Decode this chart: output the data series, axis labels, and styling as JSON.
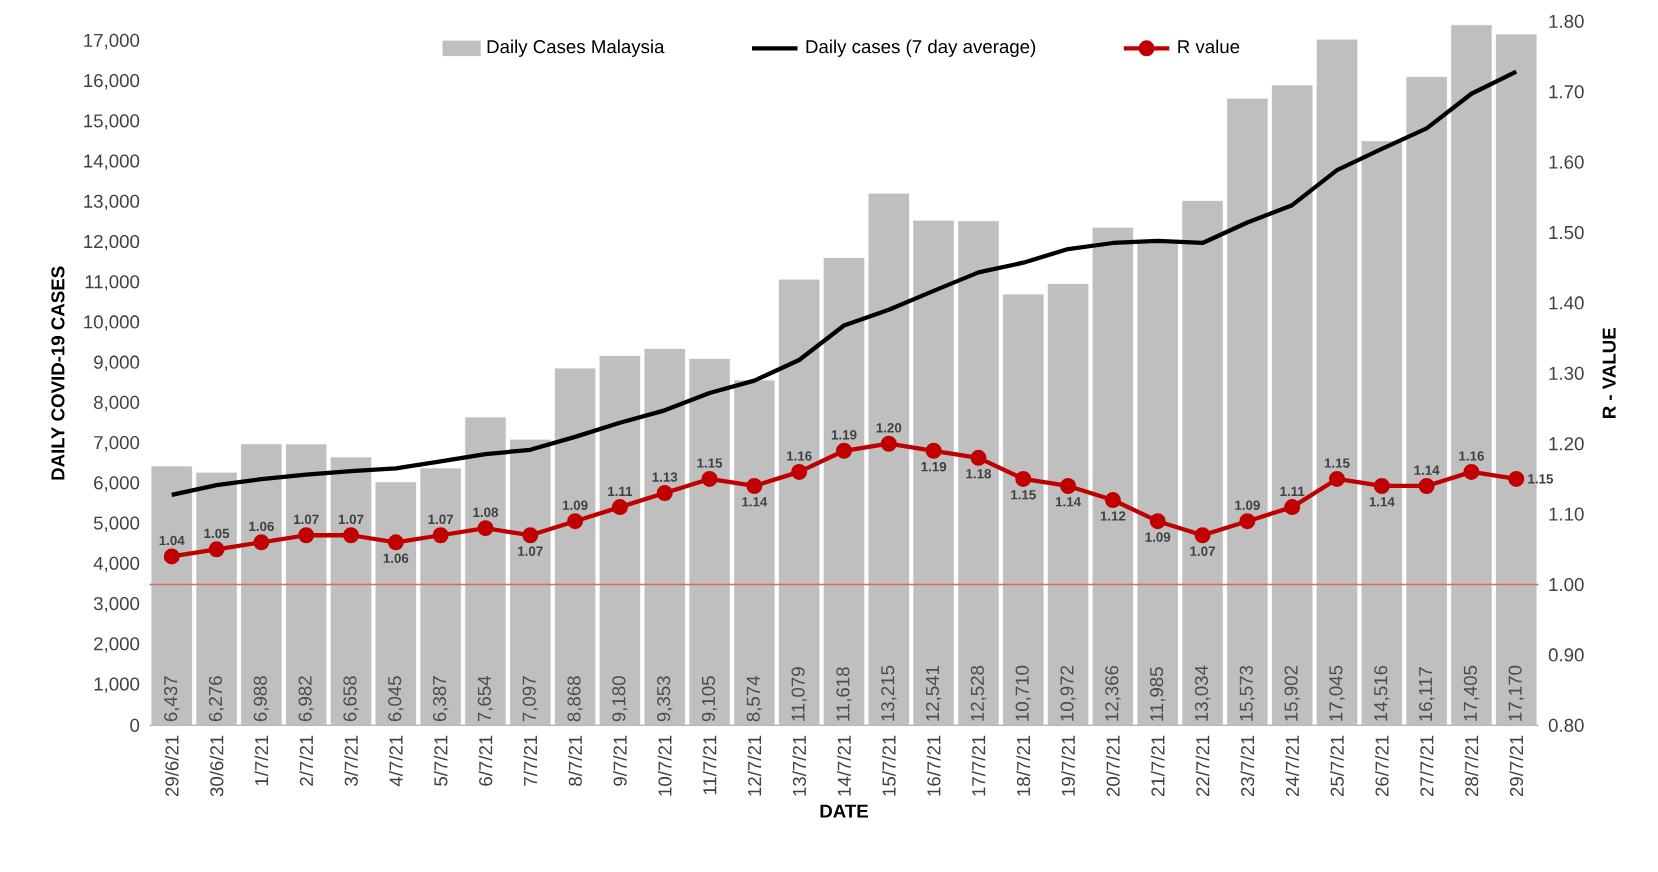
{
  "chart_data": {
    "type": "bar",
    "xlabel": "DATE",
    "ylabel": "DAILY COVID-19 CASES",
    "y2label": "R - VALUE",
    "categories": [
      "29/6/21",
      "30/6/21",
      "1/7/21",
      "2/7/21",
      "3/7/21",
      "4/7/21",
      "5/7/21",
      "6/7/21",
      "7/7/21",
      "8/7/21",
      "9/7/21",
      "10/7/21",
      "11/7/21",
      "12/7/21",
      "13/7/21",
      "14/7/21",
      "15/7/21",
      "16/7/21",
      "17/7/21",
      "18/7/21",
      "19/7/21",
      "20/7/21",
      "21/7/21",
      "22/7/21",
      "23/7/21",
      "24/7/21",
      "25/7/21",
      "26/7/21",
      "27/7/21",
      "28/7/21",
      "29/7/21"
    ],
    "series": [
      {
        "name": "Daily Cases Malaysia",
        "color": "#bfbfbf",
        "values": [
          6437,
          6276,
          6988,
          6982,
          6658,
          6045,
          6387,
          7654,
          7097,
          8868,
          9180,
          9353,
          9105,
          8574,
          11079,
          11618,
          13215,
          12541,
          12528,
          10710,
          10972,
          12366,
          11985,
          13034,
          15573,
          15902,
          17045,
          14516,
          16117,
          17405,
          17170
        ],
        "value_labels": [
          "6,437",
          "6,276",
          "6,988",
          "6,982",
          "6,658",
          "6,045",
          "6,387",
          "7,654",
          "7,097",
          "8,868",
          "9,180",
          "9,353",
          "9,105",
          "8,574",
          "11,079",
          "11,618",
          "13,215",
          "12,541",
          "12,528",
          "10,710",
          "10,972",
          "12,366",
          "11,985",
          "13,034",
          "15,573",
          "15,902",
          "17,045",
          "14,516",
          "16,117",
          "17,405",
          "17,170"
        ]
      },
      {
        "name": "Daily cases (7 day average)",
        "type": "line",
        "color": "#000000",
        "marker": "none",
        "values": [
          5730,
          5970,
          6120,
          6230,
          6320,
          6390,
          6560,
          6740,
          6850,
          7170,
          7520,
          7830,
          8260,
          8570,
          9080,
          9940,
          10330,
          10800,
          11260,
          11500,
          11840,
          11990,
          12040,
          11990,
          12500,
          12930,
          13800,
          14330,
          14840,
          15700,
          16250
        ]
      },
      {
        "name": "R value",
        "type": "line",
        "axis": "y2",
        "color": "#c00000",
        "marker": "circle",
        "values": [
          1.04,
          1.05,
          1.06,
          1.07,
          1.07,
          1.06,
          1.07,
          1.08,
          1.07,
          1.09,
          1.11,
          1.13,
          1.15,
          1.14,
          1.16,
          1.19,
          1.2,
          1.19,
          1.18,
          1.15,
          1.14,
          1.12,
          1.09,
          1.07,
          1.09,
          1.11,
          1.15,
          1.14,
          1.14,
          1.16,
          1.15
        ],
        "value_labels": [
          "1.04",
          "1.05",
          "1.06",
          "1.07",
          "1.07",
          "1.06",
          "1.07",
          "1.08",
          "1.07",
          "1.09",
          "1.11",
          "1.13",
          "1.15",
          "1.14",
          "1.16",
          "1.19",
          "1.20",
          "1.19",
          "1.18",
          "1.15",
          "1.14",
          "1.12",
          "1.09",
          "1.07",
          "1.09",
          "1.11",
          "1.15",
          "1.14",
          "1.14",
          "1.16",
          "1.15"
        ]
      }
    ],
    "ylim": [
      0,
      17500
    ],
    "yticks": [
      0,
      {
        "value": 1000,
        "label": "1,000"
      },
      {
        "value": 2000,
        "label": "2,000"
      },
      {
        "value": 3000,
        "label": "3,000"
      },
      {
        "value": 4000,
        "label": "4,000"
      },
      {
        "value": 5000,
        "label": "5,000"
      },
      {
        "value": 6000,
        "label": "6,000"
      },
      {
        "value": 7000,
        "label": "7,000"
      },
      {
        "value": 8000,
        "label": "8,000"
      },
      {
        "value": 9000,
        "label": "9,000"
      },
      {
        "value": 10000,
        "label": "10,000"
      },
      {
        "value": 11000,
        "label": "11,000"
      },
      {
        "value": 12000,
        "label": "12,000"
      },
      {
        "value": 13000,
        "label": "13,000"
      },
      {
        "value": 14000,
        "label": "14,000"
      },
      {
        "value": 15000,
        "label": "15,000"
      },
      {
        "value": 16000,
        "label": "16,000"
      },
      {
        "value": 17000,
        "label": "17,000"
      }
    ],
    "y2lim": [
      0.8,
      1.8
    ],
    "y2ticks": [
      {
        "value": 0.8,
        "label": "0.80"
      },
      {
        "value": 0.9,
        "label": "0.90"
      },
      {
        "value": 1.0,
        "label": "1.00"
      },
      {
        "value": 1.1,
        "label": "1.10"
      },
      {
        "value": 1.2,
        "label": "1.20"
      },
      {
        "value": 1.3,
        "label": "1.30"
      },
      {
        "value": 1.4,
        "label": "1.40"
      },
      {
        "value": 1.5,
        "label": "1.50"
      },
      {
        "value": 1.6,
        "label": "1.60"
      },
      {
        "value": 1.7,
        "label": "1.70"
      },
      {
        "value": 1.8,
        "label": "1.80"
      }
    ],
    "ref_lines": [
      {
        "axis": "y2",
        "value": 1.0,
        "color": "#e06666"
      }
    ],
    "legend": "top",
    "grid": false
  }
}
